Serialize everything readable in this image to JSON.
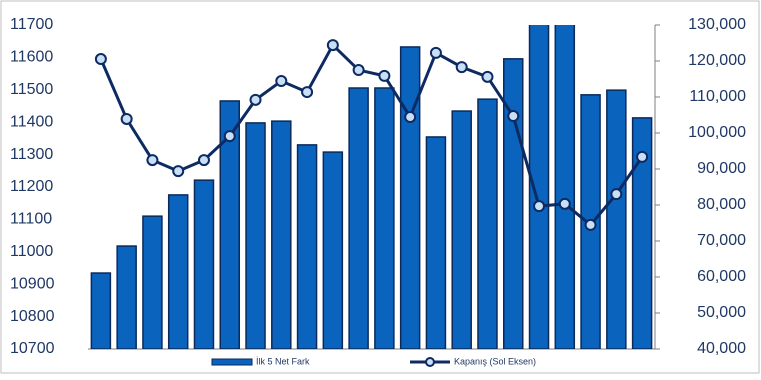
{
  "chart_data": {
    "type": "bar-line",
    "categories": [
      null,
      null,
      null,
      null,
      null,
      null,
      null,
      null,
      null,
      null,
      null,
      null,
      null,
      null,
      null,
      null,
      null,
      null,
      null,
      null,
      null,
      null
    ],
    "series": [
      {
        "name": "İlk 5 Net Fark",
        "type": "bar",
        "axis": "y2",
        "color": "#0a63bd",
        "values": [
          61100,
          68600,
          76900,
          82800,
          86900,
          108900,
          102800,
          103300,
          96700,
          94700,
          112500,
          112500,
          123900,
          98900,
          106100,
          109400,
          120600,
          135000,
          133000,
          110600,
          111900,
          104200
        ]
      },
      {
        "name": "Kapanış (Sol Eksen)",
        "type": "line",
        "axis": "y",
        "color": "#0d2a63",
        "values": [
          11595,
          11410,
          11283,
          11249,
          11283,
          11357,
          11469,
          11527,
          11493,
          11638,
          11561,
          11543,
          11416,
          11614,
          11570,
          11540,
          11419,
          11141,
          11148,
          11083,
          11178,
          11293
        ]
      }
    ],
    "ylim": [
      10700,
      11700
    ],
    "yticks": [
      10700,
      10800,
      10900,
      11000,
      11100,
      11200,
      11300,
      11400,
      11500,
      11600,
      11700
    ],
    "y2lim": [
      40000,
      130000
    ],
    "y2ticks": [
      {
        "value": 40000,
        "label": "40,000"
      },
      {
        "value": 50000,
        "label": "50,000"
      },
      {
        "value": 60000,
        "label": "60,000"
      },
      {
        "value": 70000,
        "label": "70,000"
      },
      {
        "value": 80000,
        "label": "80,000"
      },
      {
        "value": 90000,
        "label": "90,000"
      },
      {
        "value": 100000,
        "label": "100,000"
      },
      {
        "value": 110000,
        "label": "110,000"
      },
      {
        "value": 120000,
        "label": "120,000"
      },
      {
        "value": 130000,
        "label": "130,000"
      }
    ],
    "legend": "bottom"
  }
}
